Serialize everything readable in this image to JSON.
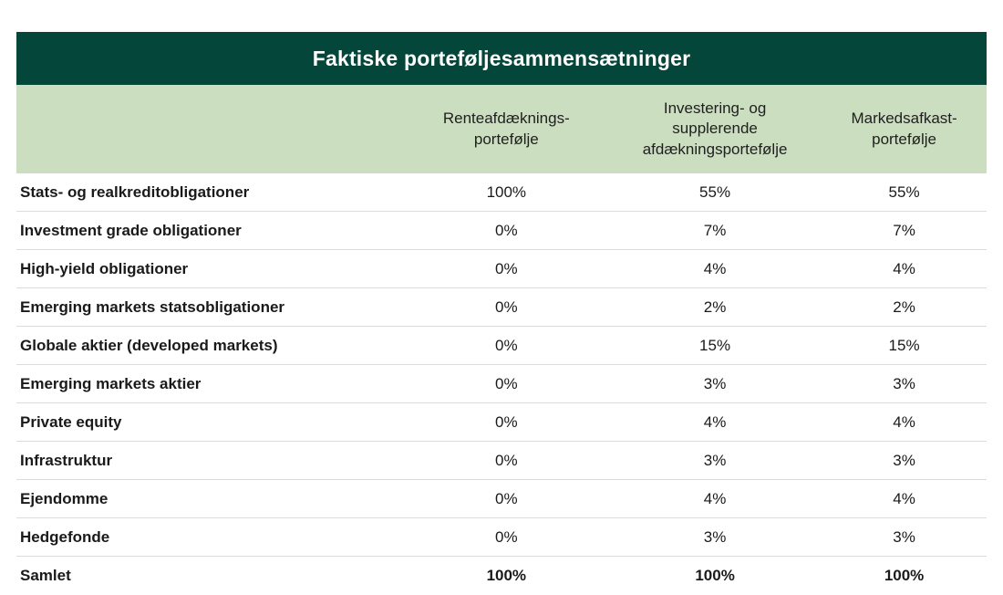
{
  "title": "Faktiske porteføljesammensætninger",
  "columns": {
    "col1": "Renteafdæknings-\nportefølje",
    "col2": "Investering- og\nsupplerende\nafdækningsportefølje",
    "col3": "Markedsafkast-\nportefølje"
  },
  "rows": [
    {
      "label": "Stats- og realkreditobligationer",
      "values": [
        "100%",
        "55%",
        "55%"
      ]
    },
    {
      "label": "Investment grade obligationer",
      "values": [
        "0%",
        "7%",
        "7%"
      ]
    },
    {
      "label": "High-yield obligationer",
      "values": [
        "0%",
        "4%",
        "4%"
      ]
    },
    {
      "label": "Emerging markets statsobligationer",
      "values": [
        "0%",
        "2%",
        "2%"
      ]
    },
    {
      "label": "Globale aktier (developed markets)",
      "values": [
        "0%",
        "15%",
        "15%"
      ]
    },
    {
      "label": "Emerging markets aktier",
      "values": [
        "0%",
        "3%",
        "3%"
      ]
    },
    {
      "label": "Private equity",
      "values": [
        "0%",
        "4%",
        "4%"
      ]
    },
    {
      "label": "Infrastruktur",
      "values": [
        "0%",
        "3%",
        "3%"
      ]
    },
    {
      "label": "Ejendomme",
      "values": [
        "0%",
        "4%",
        "4%"
      ]
    },
    {
      "label": "Hedgefonde",
      "values": [
        "0%",
        "3%",
        "3%"
      ]
    }
  ],
  "total_row": {
    "label": "Samlet",
    "values": [
      "100%",
      "100%",
      "100%"
    ]
  },
  "colors": {
    "header_bg": "#05463a",
    "subheader_bg": "#cbdec0",
    "divider": "#dcdcdc",
    "title_text": "#ffffff",
    "body_text": "#1a1a1a"
  },
  "chart_data": {
    "type": "table",
    "title": "Faktiske porteføljesammensætninger",
    "columns": [
      "Renteafdækningsportefølje",
      "Investering- og supplerende afdækningsportefølje",
      "Markedsafkastportefølje"
    ],
    "row_labels": [
      "Stats- og realkreditobligationer",
      "Investment grade obligationer",
      "High-yield obligationer",
      "Emerging markets statsobligationer",
      "Globale aktier (developed markets)",
      "Emerging markets aktier",
      "Private equity",
      "Infrastruktur",
      "Ejendomme",
      "Hedgefonde",
      "Samlet"
    ],
    "series": [
      {
        "name": "Renteafdækningsportefølje",
        "values_pct": [
          100,
          0,
          0,
          0,
          0,
          0,
          0,
          0,
          0,
          0,
          100
        ]
      },
      {
        "name": "Investering- og supplerende afdækningsportefølje",
        "values_pct": [
          55,
          7,
          4,
          2,
          15,
          3,
          4,
          3,
          4,
          3,
          100
        ]
      },
      {
        "name": "Markedsafkastportefølje",
        "values_pct": [
          55,
          7,
          4,
          2,
          15,
          3,
          4,
          3,
          4,
          3,
          100
        ]
      }
    ],
    "unit": "%"
  }
}
